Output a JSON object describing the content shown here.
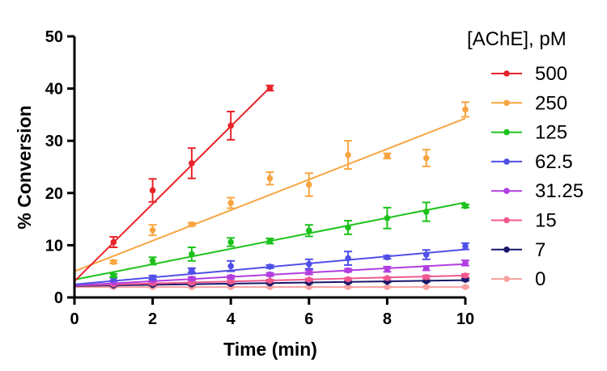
{
  "chart_data": {
    "type": "scatter",
    "xlabel": "Time (min)",
    "ylabel": "% Conversion",
    "xlim": [
      0,
      10
    ],
    "ylim": [
      0,
      50
    ],
    "xticks": [
      0,
      2,
      4,
      6,
      8,
      10
    ],
    "yticks": [
      0,
      10,
      20,
      30,
      40,
      50
    ],
    "grid": false,
    "legend": {
      "title": "[AChE], pM",
      "placement": "right"
    },
    "series": [
      {
        "name": "500",
        "color": "#e8232a",
        "x": [
          1,
          2,
          3,
          4,
          5
        ],
        "y": [
          10.6,
          20.5,
          25.7,
          32.9,
          40.1
        ],
        "err": [
          1.0,
          2.2,
          2.9,
          2.7,
          0.5
        ],
        "fit": [
          [
            0,
            3.1
          ],
          [
            5,
            40.2
          ]
        ]
      },
      {
        "name": "250",
        "color": "#f7a540",
        "x": [
          1,
          2,
          3,
          4,
          5,
          6,
          7,
          8,
          9,
          10
        ],
        "y": [
          6.8,
          12.9,
          14.0,
          18.1,
          22.8,
          21.6,
          27.3,
          27.1,
          26.7,
          36.0
        ],
        "err": [
          0.3,
          1.0,
          0.3,
          1.0,
          1.2,
          2.2,
          2.7,
          0.5,
          1.6,
          1.4
        ],
        "fit": [
          [
            0,
            5.0
          ],
          [
            10,
            34.3
          ]
        ]
      },
      {
        "name": "125",
        "color": "#1cc21c",
        "x": [
          1,
          2,
          3,
          4,
          5,
          6,
          7,
          8,
          9,
          10
        ],
        "y": [
          4.2,
          7.0,
          8.3,
          10.6,
          10.8,
          12.8,
          13.4,
          15.2,
          16.4,
          17.5
        ],
        "err": [
          0.3,
          0.7,
          1.3,
          0.8,
          0.5,
          1.1,
          1.3,
          2.0,
          1.8,
          0.3
        ],
        "fit": [
          [
            0,
            3.4
          ],
          [
            10,
            18.2
          ]
        ]
      },
      {
        "name": "62.5",
        "color": "#4f4fe8",
        "x": [
          1,
          2,
          3,
          4,
          5,
          6,
          7,
          8,
          9,
          10
        ],
        "y": [
          3.5,
          3.8,
          5.2,
          6.0,
          5.9,
          6.4,
          7.5,
          7.7,
          8.2,
          9.8
        ],
        "err": [
          0.3,
          0.4,
          0.4,
          1.0,
          0.3,
          0.9,
          1.3,
          0.3,
          0.9,
          0.6
        ],
        "fit": [
          [
            0,
            2.5
          ],
          [
            10,
            9.2
          ]
        ]
      },
      {
        "name": "31.25",
        "color": "#b13ee0",
        "x": [
          1,
          2,
          3,
          4,
          5,
          6,
          7,
          8,
          9,
          10
        ],
        "y": [
          2.9,
          3.3,
          3.6,
          3.9,
          4.4,
          4.8,
          5.2,
          5.4,
          5.6,
          6.6
        ],
        "err": [
          0.2,
          0.2,
          0.3,
          0.3,
          0.3,
          0.4,
          0.3,
          0.5,
          0.4,
          0.5
        ],
        "fit": [
          [
            0,
            2.3
          ],
          [
            10,
            6.4
          ]
        ]
      },
      {
        "name": "15",
        "color": "#f0588e",
        "x": [
          1,
          2,
          3,
          4,
          5,
          6,
          7,
          8,
          9,
          10
        ],
        "y": [
          2.5,
          2.7,
          2.8,
          3.0,
          3.2,
          3.4,
          3.5,
          3.7,
          3.9,
          4.2
        ],
        "err": [
          0.1,
          0.2,
          0.2,
          0.2,
          0.2,
          0.2,
          0.2,
          0.2,
          0.3,
          0.3
        ],
        "fit": [
          [
            0,
            2.3
          ],
          [
            10,
            4.2
          ]
        ]
      },
      {
        "name": "7",
        "color": "#17176b",
        "x": [
          1,
          2,
          3,
          4,
          5,
          6,
          7,
          8,
          9,
          10
        ],
        "y": [
          2.3,
          2.4,
          2.5,
          2.6,
          2.7,
          2.8,
          2.9,
          3.0,
          3.1,
          3.4
        ],
        "err": [
          0.1,
          0.1,
          0.1,
          0.1,
          0.1,
          0.1,
          0.1,
          0.1,
          0.1,
          0.2
        ],
        "fit": [
          [
            0,
            2.2
          ],
          [
            10,
            3.3
          ]
        ]
      },
      {
        "name": "0",
        "color": "#f6a0a0",
        "x": [
          1,
          2,
          3,
          4,
          5,
          6,
          7,
          8,
          9,
          10
        ],
        "y": [
          2.0,
          2.0,
          2.0,
          2.0,
          2.0,
          2.0,
          2.0,
          2.0,
          2.0,
          2.0
        ],
        "err": [
          0.1,
          0.1,
          0.1,
          0.1,
          0.1,
          0.1,
          0.1,
          0.1,
          0.1,
          0.1
        ],
        "fit": [
          [
            0,
            2.0
          ],
          [
            10,
            2.0
          ]
        ]
      }
    ]
  }
}
